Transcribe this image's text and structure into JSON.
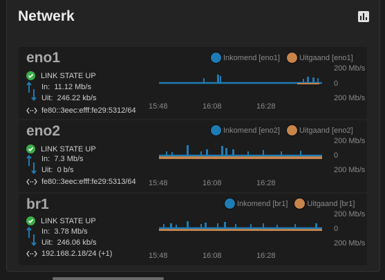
{
  "card": {
    "title": "Netwerk",
    "chart_button_icon": "bar-chart-icon"
  },
  "panels": [
    {
      "name": "eno1",
      "state": "LINK STATE UP",
      "in_label": "In:",
      "in_value": "11.12 Mb/s",
      "out_label": "Uit:",
      "out_value": "246.22 kb/s",
      "address": "fe80::3eec:efff:fe29:5312/64",
      "legend_in": "Inkomend [eno1]",
      "legend_out": "Uitgaand [eno1]",
      "axis_top": "200 Mb/s",
      "axis_mid": "0",
      "axis_bottom": "200 Mb/s",
      "times": [
        "15:48",
        "16:08",
        "16:28"
      ]
    },
    {
      "name": "eno2",
      "state": "LINK STATE UP",
      "in_label": "In:",
      "in_value": "7.3 Mb/s",
      "out_label": "Uit:",
      "out_value": "0 b/s",
      "address": "fe80::3eec:efff:fe29:5313/64",
      "legend_in": "Inkomend [eno2]",
      "legend_out": "Uitgaand [eno2]",
      "axis_top": "200 Mb/s",
      "axis_mid": "0",
      "axis_bottom": "200 Mb/s",
      "times": [
        "15:48",
        "16:08",
        "16:28"
      ]
    },
    {
      "name": "br1",
      "state": "LINK STATE UP",
      "in_label": "In:",
      "in_value": "3.78 Mb/s",
      "out_label": "Uit:",
      "out_value": "246.06 kb/s",
      "address": "192.168.2.18/24 (+1)",
      "legend_in": "Inkomend [br1]",
      "legend_out": "Uitgaand [br1]",
      "axis_top": "200 Mb/s",
      "axis_mid": "0",
      "axis_bottom": "200 Mb/s",
      "times": [
        "15:48",
        "16:08",
        "16:28"
      ]
    }
  ],
  "colors": {
    "inbound": "#1e7cb4",
    "outbound": "#c9844a",
    "ok": "#3cae4a"
  }
}
